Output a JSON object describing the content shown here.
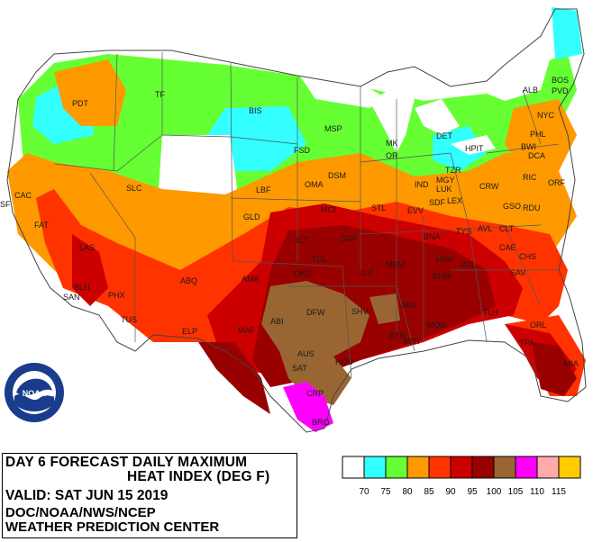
{
  "title": {
    "line1": "DAY 6 FORECAST DAILY MAXIMUM",
    "line2": "HEAT  INDEX (DEG F)",
    "valid": "VALID: SAT JUN 15 2019",
    "agency": "DOC/NOAA/NWS/NCEP",
    "center": "WEATHER PREDICTION CENTER"
  },
  "logo": {
    "text": "NOAA",
    "icon": "noaa-logo-icon"
  },
  "legend": {
    "bins": [
      {
        "color": "#ffffff"
      },
      {
        "color": "#33ffff"
      },
      {
        "color": "#66ff33"
      },
      {
        "color": "#ff9900"
      },
      {
        "color": "#ff3300"
      },
      {
        "color": "#cc0000"
      },
      {
        "color": "#990000"
      },
      {
        "color": "#996633"
      },
      {
        "color": "#ff00ff"
      },
      {
        "color": "#ffaaaa"
      },
      {
        "color": "#ffcc00"
      }
    ],
    "labels": [
      "70",
      "75",
      "80",
      "85",
      "90",
      "95",
      "100",
      "105",
      "110",
      "115"
    ]
  },
  "map_colors": {
    "le70": "#ffffff",
    "c75": "#33ffff",
    "c80": "#66ff33",
    "c85": "#ff9900",
    "c90": "#ff3300",
    "c95": "#cc0000",
    "c100": "#990000",
    "c105": "#996633",
    "c110": "#ff00ff",
    "water": "#ffffff"
  },
  "cities": [
    {
      "name": "PDT"
    },
    {
      "name": "TF"
    },
    {
      "name": "BIS"
    },
    {
      "name": "MSP"
    },
    {
      "name": "MK"
    },
    {
      "name": "DET"
    },
    {
      "name": "HPIT"
    },
    {
      "name": "ALB"
    },
    {
      "name": "BOS"
    },
    {
      "name": "PVD"
    },
    {
      "name": "NYC"
    },
    {
      "name": "PHL"
    },
    {
      "name": "BWI"
    },
    {
      "name": "DCA"
    },
    {
      "name": "RIC"
    },
    {
      "name": "ORF"
    },
    {
      "name": "FSD"
    },
    {
      "name": "OR"
    },
    {
      "name": "TZR"
    },
    {
      "name": "MGY"
    },
    {
      "name": "LUK"
    },
    {
      "name": "CRW"
    },
    {
      "name": "SLC"
    },
    {
      "name": "LBF"
    },
    {
      "name": "OMA"
    },
    {
      "name": "DSM"
    },
    {
      "name": "IND"
    },
    {
      "name": "SDF"
    },
    {
      "name": "LEX"
    },
    {
      "name": "GSO"
    },
    {
      "name": "RDU"
    },
    {
      "name": "CAC"
    },
    {
      "name": "SF"
    },
    {
      "name": "GLD"
    },
    {
      "name": "MCI"
    },
    {
      "name": "STL"
    },
    {
      "name": "EVV"
    },
    {
      "name": "FAT"
    },
    {
      "name": "LAS"
    },
    {
      "name": "ICT"
    },
    {
      "name": "SGF"
    },
    {
      "name": "BNA"
    },
    {
      "name": "TYS"
    },
    {
      "name": "AVL"
    },
    {
      "name": "CLT"
    },
    {
      "name": "CAE"
    },
    {
      "name": "CHS"
    },
    {
      "name": "SAV"
    },
    {
      "name": "TUL"
    },
    {
      "name": "LIT"
    },
    {
      "name": "MEM"
    },
    {
      "name": "HSV"
    },
    {
      "name": "BHM"
    },
    {
      "name": "ATL"
    },
    {
      "name": "ABQ"
    },
    {
      "name": "AMA"
    },
    {
      "name": "OKC"
    },
    {
      "name": "BLH"
    },
    {
      "name": "PHX"
    },
    {
      "name": "SAN"
    },
    {
      "name": "DFW"
    },
    {
      "name": "SHV"
    },
    {
      "name": "JAN"
    },
    {
      "name": "TUS"
    },
    {
      "name": "ELP"
    },
    {
      "name": "MAF"
    },
    {
      "name": "ABI"
    },
    {
      "name": "MOB"
    },
    {
      "name": "TLH"
    },
    {
      "name": "BTR"
    },
    {
      "name": "MSY"
    },
    {
      "name": "ORL"
    },
    {
      "name": "TPA"
    },
    {
      "name": "MIA"
    },
    {
      "name": "AUS"
    },
    {
      "name": "SAT"
    },
    {
      "name": "HOU"
    },
    {
      "name": "CRP"
    },
    {
      "name": "BRO"
    }
  ]
}
